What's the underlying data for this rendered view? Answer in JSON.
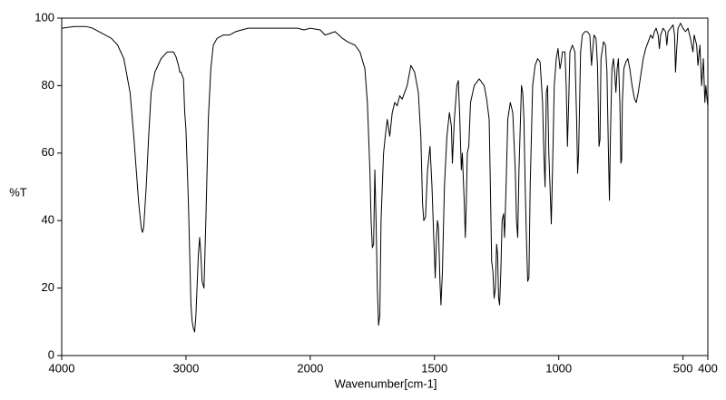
{
  "chart_data": {
    "type": "line",
    "x_label": "Wavenumber[cm-1]",
    "y_label": "%T",
    "xlim": [
      4000,
      400
    ],
    "x_scale_break": 2000,
    "x_scale_ratio": 2,
    "ylim": [
      0,
      100
    ],
    "yticks": [
      0,
      20,
      40,
      60,
      80,
      100
    ],
    "xticks": [
      4000,
      3000,
      2000,
      1500,
      1000,
      500,
      400
    ],
    "color": "#000000",
    "x": [
      4000,
      3900,
      3800,
      3750,
      3700,
      3650,
      3600,
      3550,
      3500,
      3450,
      3420,
      3400,
      3380,
      3360,
      3350,
      3340,
      3320,
      3300,
      3280,
      3250,
      3200,
      3150,
      3100,
      3080,
      3060,
      3050,
      3040,
      3020,
      3010,
      3000,
      2980,
      2960,
      2950,
      2940,
      2930,
      2920,
      2900,
      2890,
      2880,
      2870,
      2855,
      2840,
      2820,
      2800,
      2780,
      2750,
      2700,
      2650,
      2600,
      2500,
      2400,
      2300,
      2200,
      2100,
      2050,
      2000,
      1960,
      1940,
      1900,
      1870,
      1850,
      1820,
      1800,
      1780,
      1770,
      1760,
      1755,
      1750,
      1745,
      1740,
      1735,
      1730,
      1725,
      1720,
      1715,
      1705,
      1695,
      1690,
      1680,
      1670,
      1660,
      1650,
      1640,
      1630,
      1610,
      1595,
      1580,
      1565,
      1555,
      1548,
      1543,
      1536,
      1528,
      1518,
      1510,
      1503,
      1497,
      1492,
      1488,
      1484,
      1478,
      1474,
      1468,
      1460,
      1450,
      1440,
      1432,
      1428,
      1420,
      1410,
      1404,
      1398,
      1392,
      1388,
      1380,
      1376,
      1372,
      1368,
      1362,
      1355,
      1340,
      1320,
      1300,
      1290,
      1280,
      1275,
      1270,
      1265,
      1260,
      1255,
      1250,
      1246,
      1242,
      1238,
      1233,
      1228,
      1222,
      1218,
      1212,
      1205,
      1195,
      1185,
      1175,
      1170,
      1165,
      1160,
      1150,
      1145,
      1140,
      1135,
      1130,
      1125,
      1120,
      1115,
      1105,
      1095,
      1085,
      1075,
      1065,
      1060,
      1055,
      1050,
      1045,
      1040,
      1035,
      1030,
      1025,
      1018,
      1010,
      1003,
      995,
      990,
      985,
      975,
      970,
      965,
      960,
      955,
      945,
      935,
      928,
      924,
      920,
      912,
      905,
      895,
      885,
      875,
      868,
      864,
      858,
      850,
      844,
      838,
      834,
      830,
      820,
      812,
      806,
      800,
      796,
      792,
      786,
      780,
      774,
      770,
      765,
      760,
      754,
      750,
      747,
      744,
      738,
      730,
      722,
      714,
      705,
      695,
      688,
      680,
      672,
      660,
      650,
      640,
      630,
      622,
      615,
      608,
      600,
      595,
      590,
      580,
      570,
      565,
      560,
      550,
      540,
      534,
      530,
      526,
      520,
      510,
      500,
      490,
      480,
      470,
      460,
      455,
      445,
      440,
      432,
      425,
      418,
      412,
      408,
      402,
      400
    ],
    "values": [
      97,
      97.5,
      97.5,
      97,
      96,
      95,
      94,
      92,
      88,
      78,
      65,
      55,
      45,
      38,
      36.5,
      38,
      50,
      65,
      78,
      84,
      88,
      90,
      90,
      88.5,
      86,
      84,
      84,
      82,
      72,
      67,
      45,
      15,
      10,
      8,
      7,
      12,
      30,
      35,
      30,
      22,
      20,
      40,
      70,
      85,
      92,
      94,
      95,
      95,
      96,
      97,
      97,
      97,
      97,
      97,
      96.5,
      97,
      96.5,
      95,
      96,
      94,
      93,
      92,
      90,
      85,
      75,
      55,
      40,
      32,
      33,
      55,
      40,
      20,
      9,
      12,
      40,
      60,
      67,
      70,
      65,
      72,
      75,
      74,
      77,
      76,
      80,
      86,
      84,
      78,
      65,
      45,
      40,
      41,
      55,
      62,
      50,
      35,
      23,
      35,
      40,
      38,
      22,
      15,
      25,
      50,
      65,
      72,
      68,
      57,
      70,
      80,
      81.5,
      70,
      55,
      60,
      45,
      35,
      45,
      60,
      62,
      75,
      80,
      82,
      80,
      76,
      70,
      50,
      28,
      25,
      17,
      20,
      33,
      30,
      17,
      15,
      25,
      40,
      42,
      35,
      50,
      70,
      75,
      72,
      55,
      40,
      35,
      55,
      80,
      78,
      70,
      50,
      35,
      22,
      23,
      50,
      80,
      86,
      88,
      87,
      75,
      60,
      50,
      78,
      80,
      60,
      50,
      39,
      55,
      80,
      88,
      91,
      85,
      87,
      90,
      90,
      80,
      62,
      75,
      90,
      92,
      90,
      70,
      54,
      60,
      90,
      95,
      96,
      96,
      95,
      86,
      90,
      95,
      94,
      86,
      62,
      64,
      88,
      93,
      92,
      84,
      60,
      46,
      65,
      85,
      88,
      83,
      78,
      85,
      88,
      75,
      57,
      58,
      75,
      85,
      87,
      88,
      85,
      80,
      76,
      75,
      78,
      82,
      88,
      91,
      93,
      95,
      94,
      96,
      97,
      95,
      91,
      95,
      97,
      96,
      92,
      96,
      97,
      98,
      95,
      84,
      90,
      97,
      98.5,
      97,
      96,
      97,
      94,
      90,
      95,
      92,
      86,
      92,
      80,
      88,
      75,
      80,
      75,
      74
    ]
  }
}
